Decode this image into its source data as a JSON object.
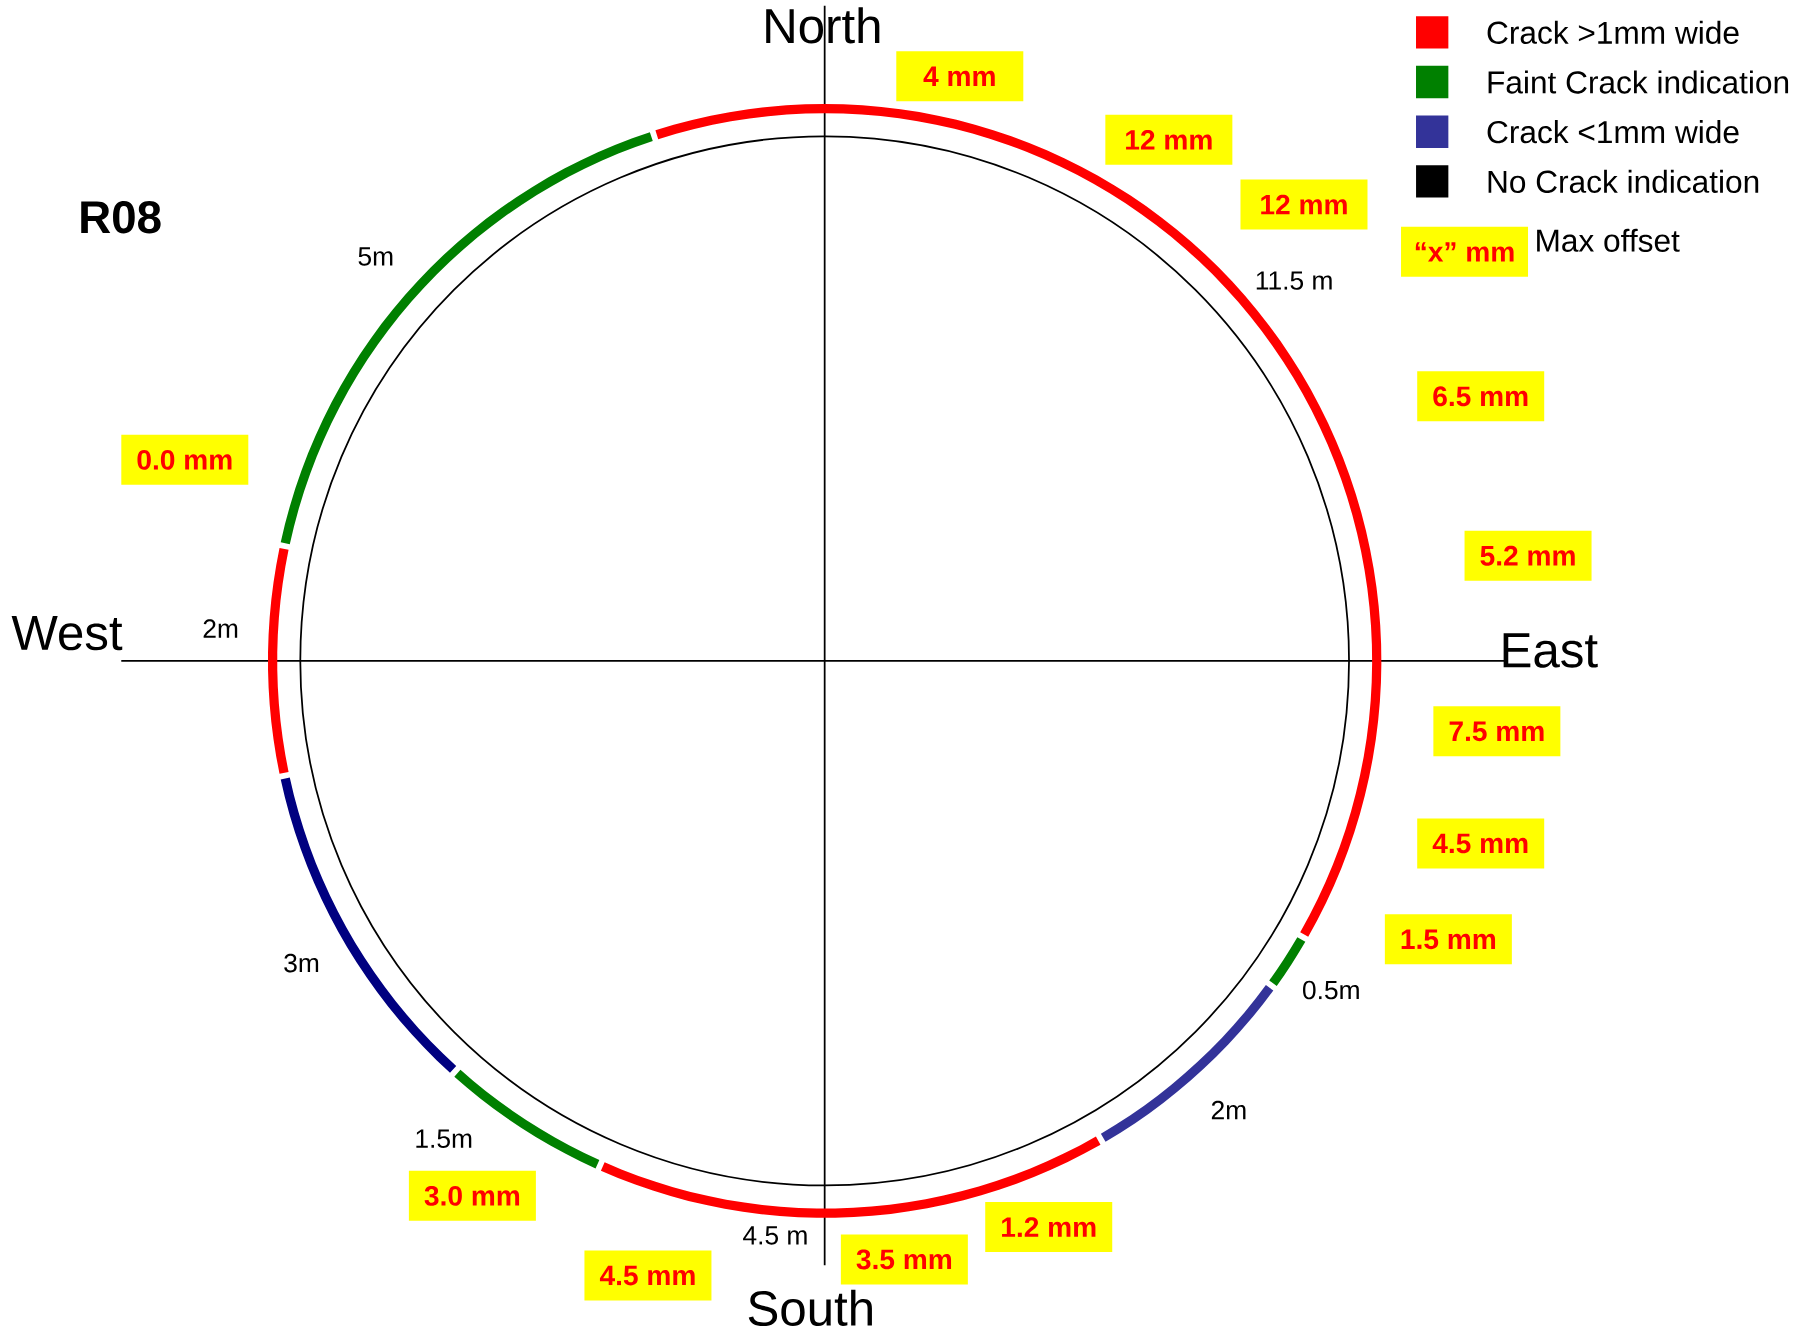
{
  "chart_data": {
    "type": "donut",
    "title": "R08",
    "categories": [
      "Crack >1mm wide",
      "Faint Crack indication",
      "Crack <1mm wide",
      null,
      null,
      null,
      null,
      null
    ],
    "values": [
      11.5,
      0.5,
      2,
      4.5,
      1.5,
      3,
      2,
      5
    ],
    "value_labels": [
      "11.5 m",
      "0.5m",
      "2m",
      "4.5 m",
      "1.5m",
      "3m",
      "2m",
      "5m"
    ],
    "colors": [
      "#ff0000",
      "#008000",
      "#333399",
      "#ff0000",
      "#008000",
      "#000080",
      "#ff0000",
      "#008000"
    ],
    "legend": "top right",
    "annotations": [
      "North",
      "South",
      "East",
      "West",
      "4 mm",
      "12 mm",
      "12 mm",
      "“x” mm",
      "Max offset",
      "6.5 mm",
      "5.2 mm",
      "7.5 mm",
      "4.5 mm",
      "1.5 mm",
      "1.2 mm",
      "3.5 mm",
      "4.5 mm",
      "3.0 mm",
      "0.0 mm",
      "No Crack indication"
    ]
  }
}
